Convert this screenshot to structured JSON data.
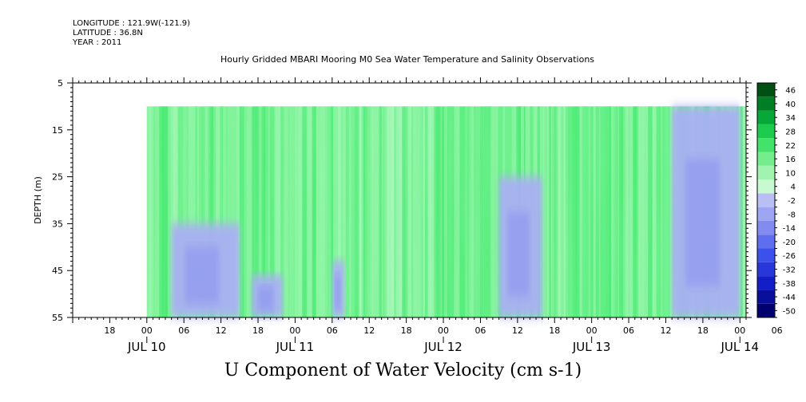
{
  "header": {
    "longitude": "LONGITUDE : 121.9W(-121.9)",
    "latitude": "LATITUDE : 36.8N",
    "year": "YEAR : 2011"
  },
  "chart_data": {
    "type": "heatmap",
    "title": "Hourly Gridded MBARI Mooring M0 Sea Water Temperature and Salinity Observations",
    "variable_label": "U Component of Water Velocity (cm s-1)",
    "ylabel": "DEPTH (m)",
    "y_range": [
      5,
      55
    ],
    "y_inverted": true,
    "y_ticks": [
      5,
      15,
      25,
      35,
      45,
      55
    ],
    "x_hour_ticks": [
      "18",
      "00",
      "06",
      "12",
      "18",
      "00",
      "06",
      "12",
      "18",
      "00",
      "06",
      "12",
      "18",
      "00",
      "06",
      "12",
      "18",
      "00",
      "06",
      "12",
      "18",
      "00"
    ],
    "x_day_labels": [
      "JUL 10",
      "JUL 11",
      "JUL 12",
      "JUL 13",
      "JUL 14"
    ],
    "x_range": [
      "2011-07-10T12:00",
      "2011-07-15T01:00"
    ],
    "data_start": "2011-07-11T00:00",
    "data_depth_range": [
      10,
      55
    ],
    "colorbar": {
      "levels": [
        -50,
        -44,
        -38,
        -32,
        -26,
        -20,
        -14,
        -8,
        -2,
        4,
        10,
        16,
        22,
        28,
        34,
        40,
        46
      ],
      "labels": [
        "46",
        "40",
        "34",
        "28",
        "22",
        "16",
        "10",
        "4",
        "-2",
        "-8",
        "-14",
        "-20",
        "-26",
        "-32",
        "-38",
        "-44",
        "-50"
      ]
    },
    "negative_regions": [
      {
        "start": "2011-07-11T04:00",
        "end": "2011-07-11T15:00",
        "depth_top": 35,
        "depth_bottom": 55
      },
      {
        "start": "2011-07-11T17:00",
        "end": "2011-07-11T22:00",
        "depth_top": 46,
        "depth_bottom": 55
      },
      {
        "start": "2011-07-12T06:00",
        "end": "2011-07-12T08:00",
        "depth_top": 43,
        "depth_bottom": 55
      },
      {
        "start": "2011-07-13T09:00",
        "end": "2011-07-13T16:00",
        "depth_top": 25,
        "depth_bottom": 55
      },
      {
        "start": "2011-07-14T13:00",
        "end": "2011-07-15T00:00",
        "depth_top": 10,
        "depth_bottom": 55
      }
    ]
  }
}
